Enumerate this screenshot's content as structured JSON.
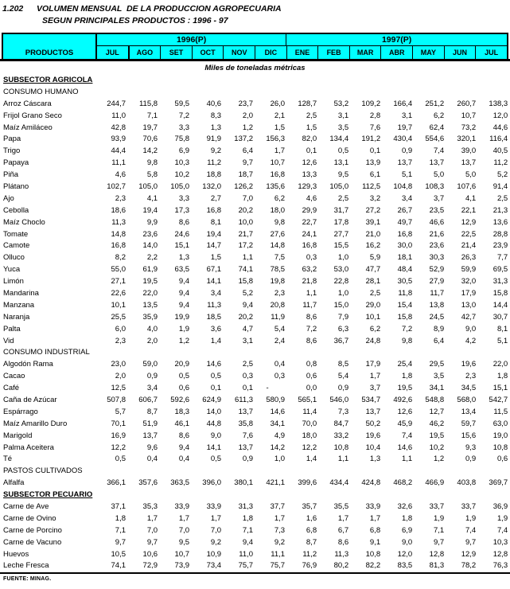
{
  "title": {
    "index": "1.202",
    "line1": "VOLUMEN MENSUAL  DE LA PRODUCCION AGROPECUARIA",
    "line2": "SEGUN PRINCIPALES PRODUCTOS : 1996 - 97"
  },
  "table": {
    "label_header": "PRODUCTOS",
    "unit_note": "Miles de toneladas métricas",
    "groups": [
      {
        "label": "1996(P)",
        "months": [
          "JUL",
          "AGO",
          "SET",
          "OCT",
          "NOV",
          "DIC"
        ]
      },
      {
        "label": "1997(P)",
        "months": [
          "ENE",
          "FEB",
          "MAR",
          "ABR",
          "MAY",
          "JUN",
          "JUL"
        ]
      }
    ],
    "rows": [
      {
        "type": "section",
        "label": "SUBSECTOR AGRICOLA"
      },
      {
        "type": "subsection",
        "label": "CONSUMO HUMANO"
      },
      {
        "type": "data",
        "label": "Arroz Cáscara",
        "values": [
          "244,7",
          "115,8",
          "59,5",
          "40,6",
          "23,7",
          "26,0",
          "128,7",
          "53,2",
          "109,2",
          "166,4",
          "251,2",
          "260,7",
          "138,3"
        ]
      },
      {
        "type": "data",
        "label": "Frijol Grano Seco",
        "values": [
          "11,0",
          "7,1",
          "7,2",
          "8,3",
          "2,0",
          "2,1",
          "2,5",
          "3,1",
          "2,8",
          "3,1",
          "6,2",
          "10,7",
          "12,0"
        ]
      },
      {
        "type": "data",
        "label": "Maíz Amiláceo",
        "values": [
          "42,8",
          "19,7",
          "3,3",
          "1,3",
          "1,2",
          "1,5",
          "1,5",
          "3,5",
          "7,6",
          "19,7",
          "62,4",
          "73,2",
          "44,6"
        ]
      },
      {
        "type": "data",
        "label": "Papa",
        "values": [
          "93,9",
          "70,6",
          "75,8",
          "91,9",
          "137,2",
          "156,3",
          "82,0",
          "134,4",
          "191,2",
          "430,4",
          "554,6",
          "320,1",
          "116,4"
        ]
      },
      {
        "type": "data",
        "label": "Trigo",
        "values": [
          "44,4",
          "14,2",
          "6,9",
          "9,2",
          "6,4",
          "1,7",
          "0,1",
          "0,5",
          "0,1",
          "0,9",
          "7,4",
          "39,0",
          "40,5"
        ]
      },
      {
        "type": "data",
        "label": "Papaya",
        "values": [
          "11,1",
          "9,8",
          "10,3",
          "11,2",
          "9,7",
          "10,7",
          "12,6",
          "13,1",
          "13,9",
          "13,7",
          "13,7",
          "13,7",
          "11,2"
        ]
      },
      {
        "type": "data",
        "label": "Piña",
        "values": [
          "4,6",
          "5,8",
          "10,2",
          "18,8",
          "18,7",
          "16,8",
          "13,3",
          "9,5",
          "6,1",
          "5,1",
          "5,0",
          "5,0",
          "5,2"
        ]
      },
      {
        "type": "data",
        "label": "Plátano",
        "values": [
          "102,7",
          "105,0",
          "105,0",
          "132,0",
          "126,2",
          "135,6",
          "129,3",
          "105,0",
          "112,5",
          "104,8",
          "108,3",
          "107,6",
          "91,4"
        ]
      },
      {
        "type": "data",
        "label": "Ajo",
        "values": [
          "2,3",
          "4,1",
          "3,3",
          "2,7",
          "7,0",
          "6,2",
          "4,6",
          "2,5",
          "3,2",
          "3,4",
          "3,7",
          "4,1",
          "2,5"
        ]
      },
      {
        "type": "data",
        "label": "Cebolla",
        "values": [
          "18,6",
          "19,4",
          "17,3",
          "16,8",
          "20,2",
          "18,0",
          "29,9",
          "31,7",
          "27,2",
          "26,7",
          "23,5",
          "22,1",
          "21,3"
        ]
      },
      {
        "type": "data",
        "label": "Maíz Choclo",
        "values": [
          "11,3",
          "9,9",
          "8,6",
          "8,1",
          "10,0",
          "9,8",
          "22,7",
          "17,8",
          "39,1",
          "49,7",
          "46,6",
          "12,9",
          "13,6"
        ]
      },
      {
        "type": "data",
        "label": "Tomate",
        "values": [
          "14,8",
          "23,6",
          "24,6",
          "19,4",
          "21,7",
          "27,6",
          "24,1",
          "27,7",
          "21,0",
          "16,8",
          "21,6",
          "22,5",
          "28,8"
        ]
      },
      {
        "type": "data",
        "label": "Camote",
        "values": [
          "16,8",
          "14,0",
          "15,1",
          "14,7",
          "17,2",
          "14,8",
          "16,8",
          "15,5",
          "16,2",
          "30,0",
          "23,6",
          "21,4",
          "23,9"
        ]
      },
      {
        "type": "data",
        "label": "Olluco",
        "values": [
          "8,2",
          "2,2",
          "1,3",
          "1,5",
          "1,1",
          "7,5",
          "0,3",
          "1,0",
          "5,9",
          "18,1",
          "30,3",
          "26,3",
          "7,7"
        ]
      },
      {
        "type": "data",
        "label": "Yuca",
        "values": [
          "55,0",
          "61,9",
          "63,5",
          "67,1",
          "74,1",
          "78,5",
          "63,2",
          "53,0",
          "47,7",
          "48,4",
          "52,9",
          "59,9",
          "69,5"
        ]
      },
      {
        "type": "data",
        "label": "Limón",
        "values": [
          "27,1",
          "19,5",
          "9,4",
          "14,1",
          "15,8",
          "19,8",
          "21,8",
          "22,8",
          "28,1",
          "30,5",
          "27,9",
          "32,0",
          "31,3"
        ]
      },
      {
        "type": "data",
        "label": "Mandarina",
        "values": [
          "22,6",
          "22,0",
          "9,4",
          "3,4",
          "5,2",
          "2,3",
          "1,1",
          "1,0",
          "2,5",
          "11,8",
          "11,7",
          "17,9",
          "15,8"
        ]
      },
      {
        "type": "data",
        "label": "Manzana",
        "values": [
          "10,1",
          "13,5",
          "9,4",
          "11,3",
          "9,4",
          "20,8",
          "11,7",
          "15,0",
          "29,0",
          "15,4",
          "13,8",
          "13,0",
          "14,4"
        ]
      },
      {
        "type": "data",
        "label": "Naranja",
        "values": [
          "25,5",
          "35,9",
          "19,9",
          "18,5",
          "20,2",
          "11,9",
          "8,6",
          "7,9",
          "10,1",
          "15,8",
          "24,5",
          "42,7",
          "30,7"
        ]
      },
      {
        "type": "data",
        "label": "Palta",
        "values": [
          "6,0",
          "4,0",
          "1,9",
          "3,6",
          "4,7",
          "5,4",
          "7,2",
          "6,3",
          "6,2",
          "7,2",
          "8,9",
          "9,0",
          "8,1"
        ]
      },
      {
        "type": "data",
        "label": "Vid",
        "values": [
          "2,3",
          "2,0",
          "1,2",
          "1,4",
          "3,1",
          "2,4",
          "8,6",
          "36,7",
          "24,8",
          "9,8",
          "6,4",
          "4,2",
          "5,1"
        ]
      },
      {
        "type": "subsection",
        "label": "CONSUMO INDUSTRIAL"
      },
      {
        "type": "data",
        "label": "Algodón Rama",
        "values": [
          "23,0",
          "59,0",
          "20,9",
          "14,6",
          "2,5",
          "0,4",
          "0,8",
          "8,5",
          "17,9",
          "25,4",
          "29,5",
          "19,6",
          "22,0"
        ]
      },
      {
        "type": "data",
        "label": "Cacao",
        "values": [
          "2,0",
          "0,9",
          "0,5",
          "0,5",
          "0,3",
          "0,3",
          "0,6",
          "5,4",
          "1,7",
          "1,8",
          "3,5",
          "2,3",
          "1,8"
        ]
      },
      {
        "type": "data",
        "label": "Café",
        "values": [
          "12,5",
          "3,4",
          "0,6",
          "0,1",
          "0,1",
          "-",
          "0,0",
          "0,9",
          "3,7",
          "19,5",
          "34,1",
          "34,5",
          "15,1"
        ]
      },
      {
        "type": "data",
        "label": "Caña de Azúcar",
        "values": [
          "507,8",
          "606,7",
          "592,6",
          "624,9",
          "611,3",
          "580,9",
          "565,1",
          "546,0",
          "534,7",
          "492,6",
          "548,8",
          "568,0",
          "542,7"
        ]
      },
      {
        "type": "data",
        "label": "Espárrago",
        "values": [
          "5,7",
          "8,7",
          "18,3",
          "14,0",
          "13,7",
          "14,6",
          "11,4",
          "7,3",
          "13,7",
          "12,6",
          "12,7",
          "13,4",
          "11,5"
        ]
      },
      {
        "type": "data",
        "label": "Maíz Amarillo Duro",
        "values": [
          "70,1",
          "51,9",
          "46,1",
          "44,8",
          "35,8",
          "34,1",
          "70,0",
          "84,7",
          "50,2",
          "45,9",
          "46,2",
          "59,7",
          "63,0"
        ]
      },
      {
        "type": "data",
        "label": "Marigold",
        "values": [
          "16,9",
          "13,7",
          "8,6",
          "9,0",
          "7,6",
          "4,9",
          "18,0",
          "33,2",
          "19,6",
          "7,4",
          "19,5",
          "15,6",
          "19,0"
        ]
      },
      {
        "type": "data",
        "label": "Palma Aceitera",
        "values": [
          "12,2",
          "9,6",
          "9,4",
          "14,1",
          "13,7",
          "14,2",
          "12,2",
          "10,8",
          "10,4",
          "14,6",
          "10,2",
          "9,3",
          "10,8"
        ]
      },
      {
        "type": "data",
        "label": "Té",
        "values": [
          "0,5",
          "0,4",
          "0,4",
          "0,5",
          "0,9",
          "1,0",
          "1,4",
          "1,1",
          "1,3",
          "1,1",
          "1,2",
          "0,9",
          "0,6"
        ]
      },
      {
        "type": "subsection",
        "label": "PASTOS CULTIVADOS"
      },
      {
        "type": "data",
        "label": "Alfalfa",
        "values": [
          "366,1",
          "357,6",
          "363,5",
          "396,0",
          "380,1",
          "421,1",
          "399,6",
          "434,4",
          "424,8",
          "468,2",
          "466,9",
          "403,8",
          "369,7"
        ]
      },
      {
        "type": "section",
        "label": "SUBSECTOR PECUARIO"
      },
      {
        "type": "data",
        "label": "Carne de Ave",
        "values": [
          "37,1",
          "35,3",
          "33,9",
          "33,9",
          "31,3",
          "37,7",
          "35,7",
          "35,5",
          "33,9",
          "32,6",
          "33,7",
          "33,7",
          "36,9"
        ]
      },
      {
        "type": "data",
        "label": "Carne de Ovino",
        "values": [
          "1,8",
          "1,7",
          "1,7",
          "1,7",
          "1,8",
          "1,7",
          "1,6",
          "1,7",
          "1,7",
          "1,8",
          "1,9",
          "1,9",
          "1,9"
        ]
      },
      {
        "type": "data",
        "label": "Carne de Porcino",
        "values": [
          "7,1",
          "7,0",
          "7,0",
          "7,0",
          "7,1",
          "7,3",
          "6,8",
          "6,7",
          "6,8",
          "6,9",
          "7,1",
          "7,4",
          "7,4"
        ]
      },
      {
        "type": "data",
        "label": "Carne de Vacuno",
        "values": [
          "9,7",
          "9,7",
          "9,5",
          "9,2",
          "9,4",
          "9,2",
          "8,7",
          "8,6",
          "9,1",
          "9,0",
          "9,7",
          "9,7",
          "10,3"
        ]
      },
      {
        "type": "data",
        "label": "Huevos",
        "values": [
          "10,5",
          "10,6",
          "10,7",
          "10,9",
          "11,0",
          "11,1",
          "11,2",
          "11,3",
          "10,8",
          "12,0",
          "12,8",
          "12,9",
          "12,8"
        ]
      },
      {
        "type": "data",
        "label": "Leche Fresca",
        "values": [
          "74,1",
          "72,9",
          "73,9",
          "73,4",
          "75,7",
          "75,7",
          "76,9",
          "80,2",
          "82,2",
          "83,5",
          "81,3",
          "78,2",
          "76,3"
        ]
      }
    ]
  },
  "footer": {
    "source": "FUENTE: MINAG."
  },
  "colors": {
    "header_bg": "#00FFFF",
    "border": "#000000",
    "text": "#000000"
  }
}
